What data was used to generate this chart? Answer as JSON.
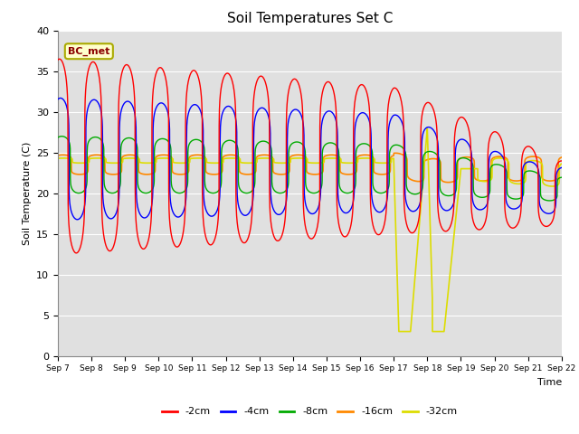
{
  "title": "Soil Temperatures Set C",
  "xlabel": "Time",
  "ylabel": "Soil Temperature (C)",
  "ylim": [
    0,
    40
  ],
  "background_color": "#e0e0e0",
  "annotation_text": "BC_met",
  "annotation_bg": "#ffffcc",
  "annotation_border": "#aaaa00",
  "series_colors": {
    "-2cm": "#ff0000",
    "-4cm": "#0000ff",
    "-8cm": "#00aa00",
    "-16cm": "#ff8800",
    "-32cm": "#dddd00"
  },
  "series_labels": [
    "-2cm",
    "-4cm",
    "-8cm",
    "-16cm",
    "-32cm"
  ],
  "xtick_labels": [
    "Sep 7",
    "Sep 8",
    "Sep 9",
    "Sep 10",
    "Sep 11",
    "Sep 12",
    "Sep 13",
    "Sep 14",
    "Sep 15",
    "Sep 16",
    "Sep 17",
    "Sep 18",
    "Sep 19",
    "Sep 20",
    "Sep 21",
    "Sep 22"
  ],
  "ytick_values": [
    0,
    5,
    10,
    15,
    20,
    25,
    30,
    35,
    40
  ],
  "grid_color": "#ffffff",
  "grid_linewidth": 0.8
}
